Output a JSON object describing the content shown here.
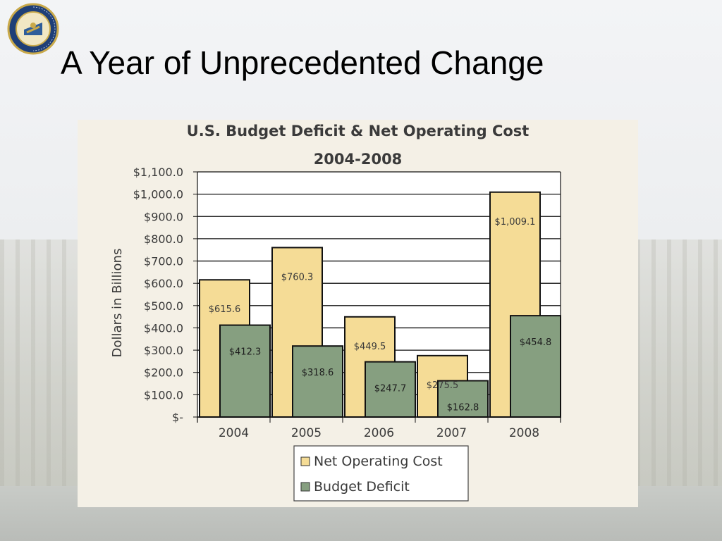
{
  "slide": {
    "title": "A Year of Unprecedented Change",
    "seal_text": "THE DEPARTMENT OF THE TREASURY",
    "seal_year": "1789"
  },
  "chart_data": {
    "type": "bar",
    "title": "U.S. Budget Deficit & Net Operating Cost",
    "subtitle": "2004-2008",
    "xlabel": "",
    "ylabel": "Dollars in Billions",
    "ylim": [
      0,
      1100
    ],
    "yticks": [
      {
        "value": 0,
        "label": "$-"
      },
      {
        "value": 100,
        "label": "$100.0"
      },
      {
        "value": 200,
        "label": "$200.0"
      },
      {
        "value": 300,
        "label": "$300.0"
      },
      {
        "value": 400,
        "label": "$400.0"
      },
      {
        "value": 500,
        "label": "$500.0"
      },
      {
        "value": 600,
        "label": "$600.0"
      },
      {
        "value": 700,
        "label": "$700.0"
      },
      {
        "value": 800,
        "label": "$800.0"
      },
      {
        "value": 900,
        "label": "$900.0"
      },
      {
        "value": 1000,
        "label": "$1,000.0"
      },
      {
        "value": 1100,
        "label": "$1,100.0"
      }
    ],
    "categories": [
      "2004",
      "2005",
      "2006",
      "2007",
      "2008"
    ],
    "series": [
      {
        "name": "Net Operating Cost",
        "color": "#f5dc96",
        "values": [
          615.6,
          760.3,
          449.5,
          275.5,
          1009.1
        ],
        "labels": [
          "$615.6",
          "$760.3",
          "$449.5",
          "$275.5",
          "$1,009.1"
        ]
      },
      {
        "name": "Budget Deficit",
        "color": "#869f80",
        "values": [
          412.3,
          318.6,
          247.7,
          162.8,
          454.8
        ],
        "labels": [
          "$412.3",
          "$318.6",
          "$247.7",
          "$162.8",
          "$454.8"
        ]
      }
    ],
    "grid": true,
    "legend_position": "bottom"
  }
}
